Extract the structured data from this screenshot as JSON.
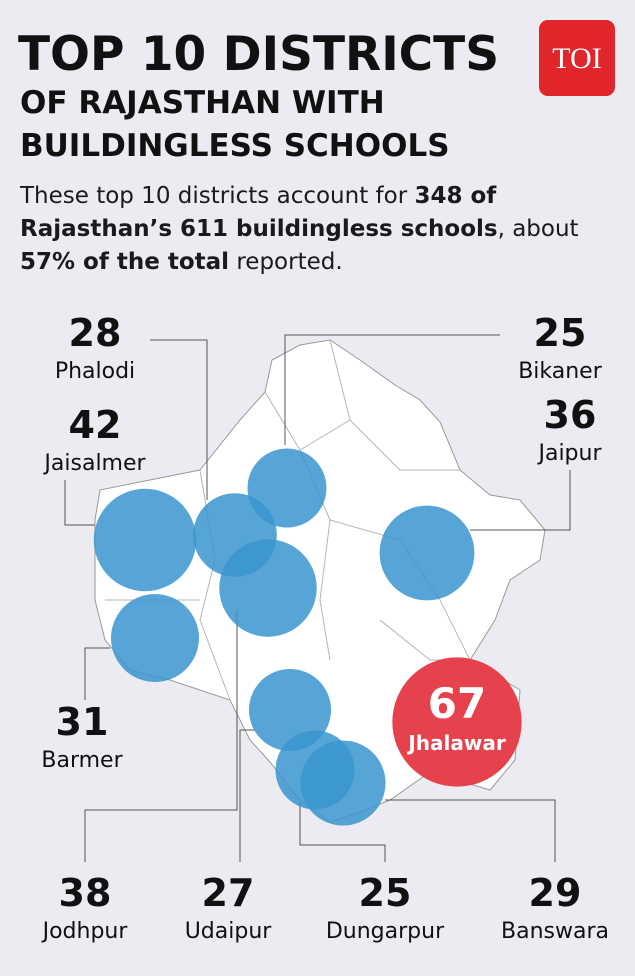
{
  "header": {
    "title": "TOP 10 DISTRICTS",
    "subtitle_lines": [
      "OF RAJASTHAN WITH",
      "BUILDINGLESS SCHOOLS"
    ]
  },
  "logo": "TOI",
  "intro": [
    {
      "text": "These top 10 districts account for ",
      "bold": false
    },
    {
      "text": "348 of Rajasthan’s 611 buildingless schools",
      "bold": true
    },
    {
      "text": ", about ",
      "bold": false
    },
    {
      "text": "57% of the total",
      "bold": true
    },
    {
      "text": " reported.",
      "bold": false
    }
  ],
  "bubble_color": "#3a95cf",
  "highlight_color": "#e5424d",
  "districts": [
    {
      "name": "Phalodi",
      "value": 28
    },
    {
      "name": "Jaisalmer",
      "value": 42
    },
    {
      "name": "Bikaner",
      "value": 25
    },
    {
      "name": "Jaipur",
      "value": 36
    },
    {
      "name": "Barmer",
      "value": 31
    },
    {
      "name": "Jodhpur",
      "value": 38
    },
    {
      "name": "Udaipur",
      "value": 27
    },
    {
      "name": "Dungarpur",
      "value": 25
    },
    {
      "name": "Banswara",
      "value": 29
    },
    {
      "name": "Jhalawar",
      "value": 67,
      "highlight": true
    }
  ]
}
